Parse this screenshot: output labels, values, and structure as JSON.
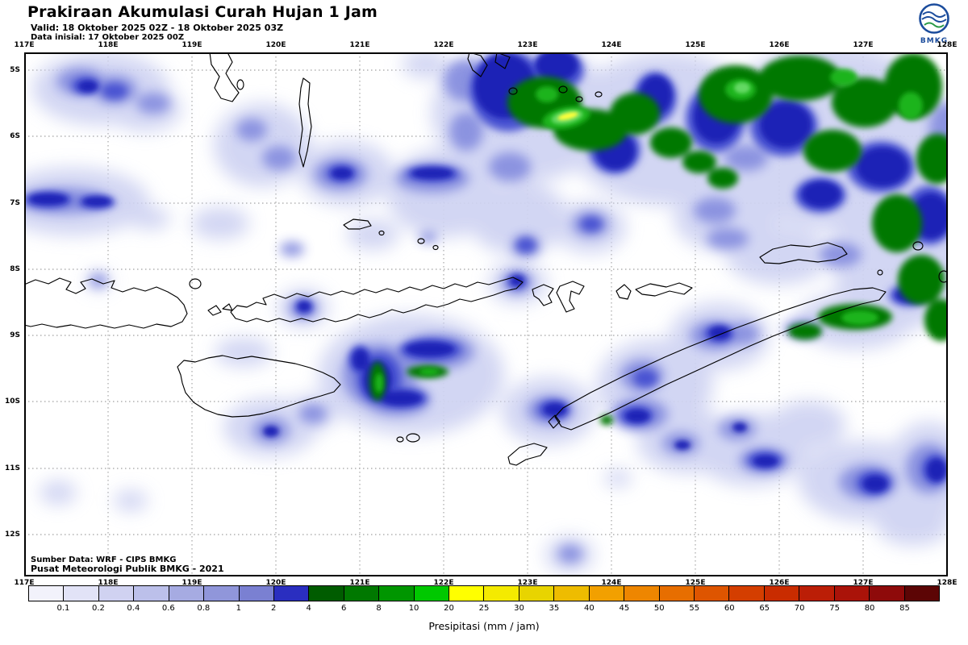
{
  "header": {
    "title": "Prakiraan Akumulasi Curah Hujan 1 Jam",
    "valid_line": "Valid: 18 Oktober 2025 02Z - 18 Oktober 2025 03Z",
    "init_line": "Data inisial: 17 Oktober 2025 00Z",
    "logo_text": "BMKG"
  },
  "map": {
    "lon_labels": [
      "117E",
      "118E",
      "119E",
      "120E",
      "121E",
      "122E",
      "123E",
      "124E",
      "125E",
      "126E",
      "127E",
      "128E"
    ],
    "lat_labels": [
      "5S",
      "6S",
      "7S",
      "8S",
      "9S",
      "10S",
      "11S",
      "12S"
    ],
    "source_line1": "Sumber Data: WRF - CIPS BMKG",
    "source_line2": "Pusat Meteorologi Publik BMKG - 2021"
  },
  "legend": {
    "title": "Presipitasi (mm / jam)",
    "values": [
      "0.1",
      "0.2",
      "0.4",
      "0.6",
      "0.8",
      "1",
      "2",
      "4",
      "6",
      "8",
      "10",
      "20",
      "25",
      "30",
      "35",
      "40",
      "45",
      "50",
      "55",
      "60",
      "65",
      "70",
      "75",
      "80",
      "85"
    ],
    "colors": [
      "#f2f2fb",
      "#e2e3f7",
      "#d0d2f1",
      "#bcc0ea",
      "#a6abe2",
      "#9096da",
      "#7a80d2",
      "#2a2ec0",
      "#005c00",
      "#007800",
      "#009600",
      "#00c800",
      "#ffff00",
      "#f4ea00",
      "#e8d400",
      "#eebc00",
      "#f2a000",
      "#ee8600",
      "#e76e00",
      "#de5500",
      "#d43e00",
      "#c92c00",
      "#bb1e06",
      "#aa1309",
      "#8e0a0a",
      "#5c0505"
    ]
  },
  "palette": {
    "accent_blue": "#1b4c9c",
    "grid_gray": "#8a8a8a"
  }
}
